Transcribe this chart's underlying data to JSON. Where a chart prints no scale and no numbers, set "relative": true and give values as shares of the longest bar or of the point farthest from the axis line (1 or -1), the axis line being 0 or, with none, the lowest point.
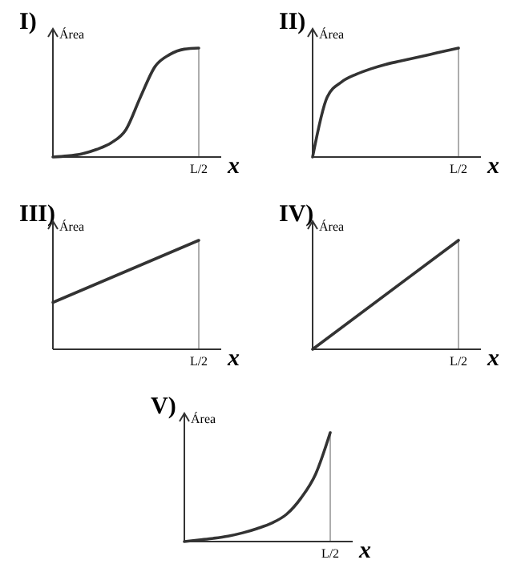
{
  "chart_data": [
    {
      "type": "line",
      "title": "I)",
      "ylabel": "Área",
      "xlabel": "x",
      "relative": true,
      "color": "#333333",
      "annotations": [
        "L/2"
      ],
      "categories": [
        null,
        null,
        null,
        null,
        null,
        null,
        null,
        null,
        null,
        null,
        null
      ],
      "values": [
        0,
        0.01,
        0.03,
        0.07,
        0.13,
        0.25,
        0.55,
        0.83,
        0.94,
        0.99,
        1
      ]
    },
    {
      "type": "line",
      "title": "II)",
      "ylabel": "Área",
      "xlabel": "x",
      "relative": true,
      "color": "#333333",
      "annotations": [
        "L/2"
      ],
      "categories": [
        null,
        null,
        null,
        null,
        null,
        null,
        null,
        null,
        null,
        null,
        null
      ],
      "values": [
        0,
        0.55,
        0.69,
        0.76,
        0.81,
        0.85,
        0.88,
        0.91,
        0.94,
        0.97,
        1
      ]
    },
    {
      "type": "line",
      "title": "III)",
      "ylabel": "Área",
      "xlabel": "x",
      "relative": true,
      "color": "#333333",
      "annotations": [
        "L/2"
      ],
      "categories": [
        null,
        null
      ],
      "values": [
        0.43,
        1
      ]
    },
    {
      "type": "line",
      "title": "IV)",
      "ylabel": "Área",
      "xlabel": "x",
      "relative": true,
      "color": "#333333",
      "annotations": [
        "L/2"
      ],
      "categories": [
        null,
        null
      ],
      "values": [
        0,
        1
      ]
    },
    {
      "type": "line",
      "title": "V)",
      "ylabel": "Área",
      "xlabel": "x",
      "relative": true,
      "color": "#333333",
      "annotations": [
        "L/2"
      ],
      "categories": [
        null,
        null,
        null,
        null,
        null,
        null,
        null,
        null,
        null,
        null,
        null
      ],
      "values": [
        0,
        0.015,
        0.03,
        0.05,
        0.08,
        0.12,
        0.17,
        0.25,
        0.4,
        0.62,
        1
      ]
    }
  ]
}
